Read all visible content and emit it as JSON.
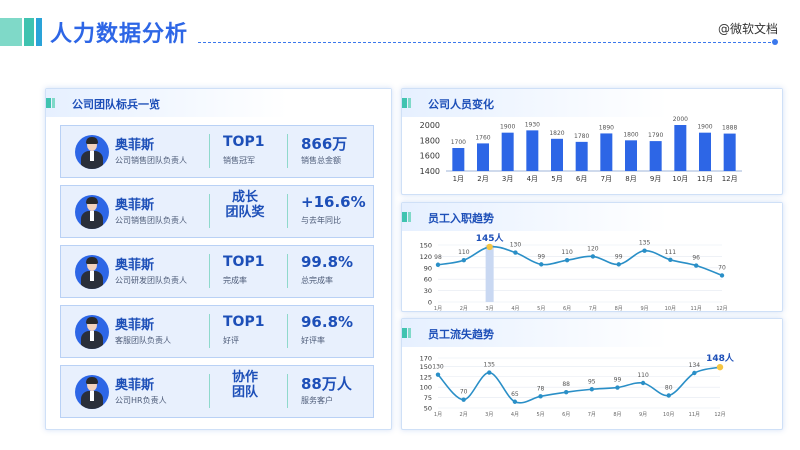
{
  "header": {
    "title": "人力数据分析",
    "brand": "@微软文档"
  },
  "team_panel": {
    "title": "公司团队标兵一览",
    "members": [
      {
        "name": "奥菲斯",
        "role": "公司销售团队负责人",
        "award": "TOP1",
        "award_sub": "销售冠军",
        "value": "866万",
        "value_sub": "销售总金额"
      },
      {
        "name": "奥菲斯",
        "role": "公司销售团队负责人",
        "award": "成长 团队奖",
        "award_sub": "",
        "value": "+16.6%",
        "value_sub": "与去年同比"
      },
      {
        "name": "奥菲斯",
        "role": "公司研发团队负责人",
        "award": "TOP1",
        "award_sub": "完成率",
        "value": "99.8%",
        "value_sub": "总完成率"
      },
      {
        "name": "奥菲斯",
        "role": "客服团队负责人",
        "award": "TOP1",
        "award_sub": "好评",
        "value": "96.8%",
        "value_sub": "好评率"
      },
      {
        "name": "奥菲斯",
        "role": "公司HR负责人",
        "award": "协作 团队",
        "award_sub": "",
        "value": "88万人",
        "value_sub": "服务客户"
      }
    ]
  },
  "headcount_panel": {
    "title": "公司人员变化"
  },
  "hiring_panel": {
    "title": "员工入职趋势"
  },
  "attrition_panel": {
    "title": "员工流失趋势"
  },
  "colors": {
    "accent": "#2d66e6",
    "teal": "#3fc3b0",
    "highlight": "#f5c542"
  },
  "chart_data": [
    {
      "type": "bar",
      "title": "公司人员变化",
      "categories": [
        "1月",
        "2月",
        "3月",
        "4月",
        "5月",
        "6月",
        "7月",
        "8月",
        "9月",
        "10月",
        "11月",
        "12月"
      ],
      "values": [
        1700,
        1760,
        1900,
        1930,
        1820,
        1780,
        1890,
        1800,
        1790,
        2000,
        1900,
        1888
      ],
      "yticks": [
        1400,
        1600,
        1800,
        2000
      ],
      "ylim": [
        1400,
        2000
      ]
    },
    {
      "type": "line",
      "title": "员工入职趋势",
      "categories": [
        "1月",
        "2月",
        "3月",
        "4月",
        "5月",
        "6月",
        "7月",
        "8月",
        "9月",
        "10月",
        "11月",
        "12月"
      ],
      "values": [
        98,
        110,
        145,
        130,
        99,
        110,
        120,
        99,
        135,
        111,
        96,
        70
      ],
      "yticks": [
        0,
        30,
        60,
        90,
        120,
        150
      ],
      "ylim": [
        0,
        150
      ],
      "highlight": {
        "index": 2,
        "label": "145人"
      }
    },
    {
      "type": "line",
      "title": "员工流失趋势",
      "categories": [
        "1月",
        "2月",
        "3月",
        "4月",
        "5月",
        "6月",
        "7月",
        "8月",
        "9月",
        "10月",
        "11月",
        "12月"
      ],
      "values": [
        130,
        70,
        135,
        65,
        78,
        88,
        95,
        99,
        110,
        80,
        134,
        148
      ],
      "yticks": [
        50,
        75,
        100,
        125,
        150,
        170
      ],
      "ylim": [
        50,
        170
      ],
      "highlight": {
        "index": 11,
        "label": "148人"
      }
    }
  ]
}
